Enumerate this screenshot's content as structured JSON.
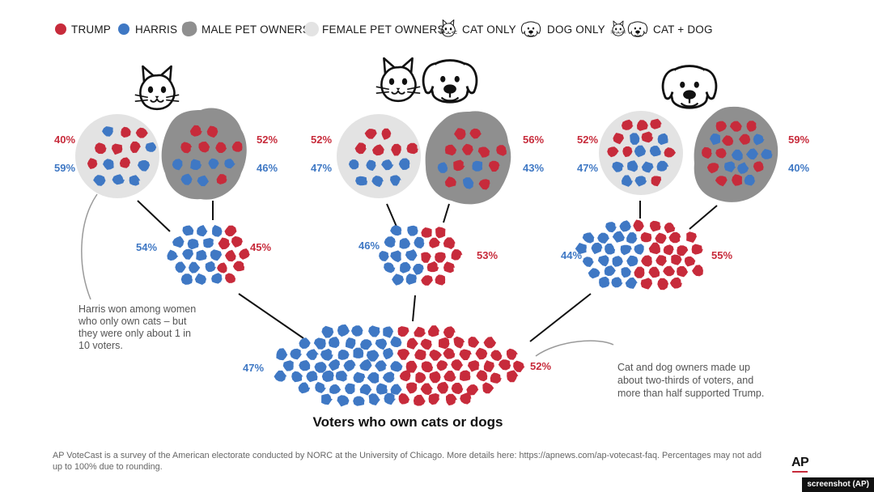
{
  "legend": {
    "trump": "TRUMP",
    "harris": "HARRIS",
    "male": "MALE PET OWNERS",
    "female": "FEMALE PET OWNERS",
    "cat_only": "CAT ONLY",
    "dog_only": "DOG ONLY",
    "cat_dog": "CAT + DOG"
  },
  "colors": {
    "trump": "#c72b3b",
    "harris": "#3f78c4",
    "male": "#8f8f8f",
    "female": "#e3e3e3"
  },
  "groups": {
    "cat_only": {
      "female": {
        "trump": "40%",
        "harris": "59%"
      },
      "male": {
        "trump": "52%",
        "harris": "46%"
      },
      "combined": {
        "harris": "54%",
        "trump": "45%"
      }
    },
    "cat_dog": {
      "female": {
        "trump": "52%",
        "harris": "47%"
      },
      "male": {
        "trump": "56%",
        "harris": "43%"
      },
      "combined": {
        "harris": "46%",
        "trump": "53%"
      }
    },
    "dog_only": {
      "female": {
        "trump": "52%",
        "harris": "47%"
      },
      "male": {
        "trump": "59%",
        "harris": "40%"
      },
      "combined": {
        "harris": "44%",
        "trump": "55%"
      }
    }
  },
  "total": {
    "harris": "47%",
    "trump": "52%"
  },
  "title": "Voters who own cats or dogs",
  "annotations": {
    "left": [
      "Harris won among women",
      "who only own cats – but",
      "they were only about 1 in",
      "10 voters."
    ],
    "right": [
      "Cat and dog owners made up",
      "about two-thirds of voters, and",
      "more than half supported Trump."
    ]
  },
  "footer": "AP VoteCast is a survey of the American electorate conducted by NORC at the University of Chicago. More details here: https://apnews.com/ap-votecast-faq. Percentages may not add up to 100% due to rounding.",
  "logo": "AP",
  "credit": "screenshot (AP)"
}
